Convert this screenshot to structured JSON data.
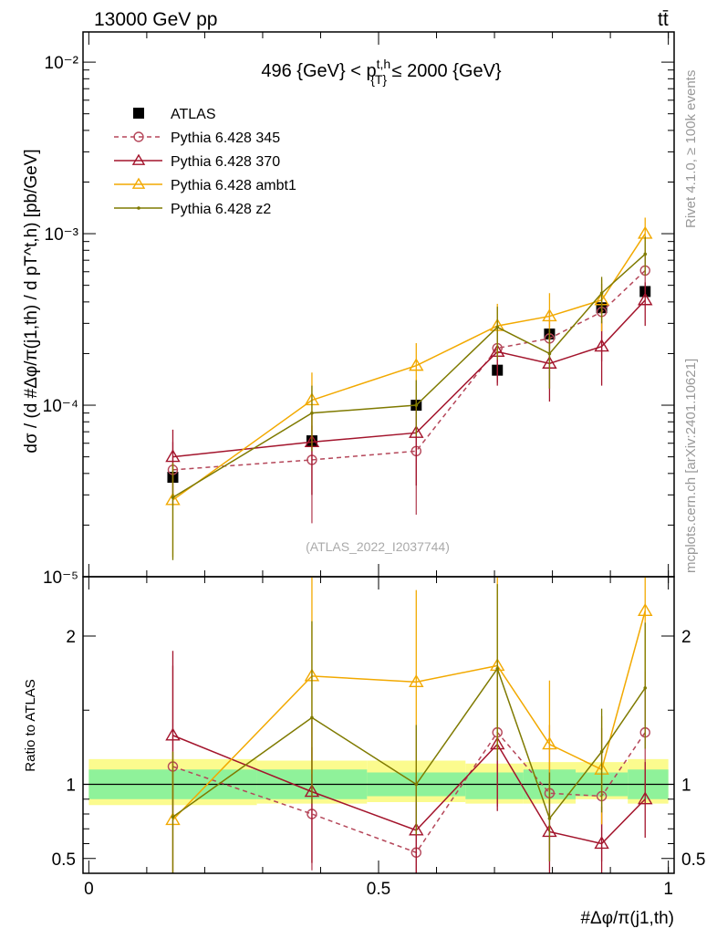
{
  "header": {
    "energy_label": "13000 GeV pp",
    "process_label": "tt̄"
  },
  "side_labels": {
    "rivet": "Rivet 4.1.0, ≥ 100k events",
    "mcplots": "mcplots.cern.ch [arXiv:2401.10621]"
  },
  "chart_data": [
    {
      "type": "line",
      "panel": "main",
      "title": "496 {GeV} < p_{T}^{t,h} ≤ 2000 {GeV}",
      "title_parts": {
        "pre": "496 {GeV} < p",
        "sup": "t,h",
        "sub": "{T}",
        "post": " ≤ 2000 {GeV}"
      },
      "ylabel": "dσ / (d #Δφ/π(j1,th) / d pT^t,h) [pb/GeV]",
      "yscale": "log",
      "ylim": [
        1e-05,
        0.015
      ],
      "xlim": [
        -0.01,
        1.01
      ],
      "y_tick_labels": [
        "10⁻²",
        "10⁻³",
        "10⁻⁴",
        "10⁻⁵"
      ],
      "watermark": "(ATLAS_2022_I2037744)",
      "x": [
        0.145,
        0.385,
        0.565,
        0.705,
        0.795,
        0.885,
        0.96
      ],
      "series": [
        {
          "name": "ATLAS",
          "color": "#000000",
          "marker": "square",
          "values": [
            3.8e-05,
            6.2e-05,
            0.0001,
            0.00016,
            0.00026,
            0.00037,
            0.00046
          ]
        },
        {
          "name": "Pythia 6.428 345",
          "color": "#b5475a",
          "marker": "circle",
          "dashed": true,
          "values": [
            4.2e-05,
            4.8e-05,
            5.4e-05,
            0.000215,
            0.000245,
            0.00035,
            0.00061
          ],
          "err_lo": [
            2.6e-05,
            2.05e-05,
            2.3e-05,
            0.000135,
            0.000125,
            0.00018,
            0.00044
          ],
          "err_hi": [
            6.1e-05,
            7.6e-05,
            8.6e-05,
            0.00029,
            0.00035,
            0.00051,
            0.0008
          ]
        },
        {
          "name": "Pythia 6.428 370",
          "color": "#a3142c",
          "marker": "triangle",
          "values": [
            5e-05,
            6.1e-05,
            6.9e-05,
            0.000205,
            0.000175,
            0.00022,
            0.00041
          ],
          "err_lo": [
            3e-05,
            3e-05,
            3.4e-05,
            0.00013,
            0.000105,
            0.00013,
            0.00029
          ],
          "err_hi": [
            7.2e-05,
            9.2e-05,
            0.00011,
            0.00029,
            0.00025,
            0.00031,
            0.00052
          ]
        },
        {
          "name": "Pythia 6.428 ambt1",
          "color": "#f2a900",
          "marker": "triangle",
          "values": [
            2.8e-05,
            0.000107,
            0.00017,
            0.00029,
            0.00033,
            0.00041,
            0.001
          ],
          "err_lo": [
            1.3e-05,
            6.6e-05,
            0.000106,
            0.000195,
            0.00022,
            0.00027,
            0.00076
          ],
          "err_hi": [
            4.6e-05,
            0.000155,
            0.00023,
            0.00039,
            0.00045,
            0.00054,
            0.00124
          ]
        },
        {
          "name": "Pythia 6.428 z2",
          "color": "#7f7a00",
          "marker": "dot",
          "values": [
            2.9e-05,
            9e-05,
            0.0001,
            0.000285,
            0.0002,
            0.00045,
            0.00076
          ],
          "err_lo": [
            1.25e-05,
            5.4e-05,
            6.6e-05,
            0.000185,
            0.000125,
            0.0003,
            0.00057
          ],
          "err_hi": [
            4.6e-05,
            0.00013,
            0.00014,
            0.000375,
            0.00028,
            0.00056,
            0.00096
          ]
        }
      ]
    },
    {
      "type": "line",
      "panel": "ratio",
      "ylabel": "Ratio to ATLAS",
      "xlabel": "#Δφ/π(j1,th)",
      "ylim": [
        0.4,
        2.4
      ],
      "xlim": [
        -0.01,
        1.01
      ],
      "x_tick_labels": [
        "0",
        "0.5",
        "1"
      ],
      "y_tick_labels": [
        "0.5",
        "1",
        "2"
      ],
      "x": [
        0.145,
        0.385,
        0.565,
        0.705,
        0.795,
        0.885,
        0.96
      ],
      "bands": {
        "edges": [
          0,
          0.29,
          0.48,
          0.65,
          0.75,
          0.84,
          0.93,
          1.0
        ],
        "green_lo": [
          0.9,
          0.9,
          0.92,
          0.9,
          0.9,
          0.92,
          0.9
        ],
        "green_hi": [
          1.1,
          1.1,
          1.08,
          1.08,
          1.1,
          1.08,
          1.1
        ],
        "yellow_lo": [
          0.86,
          0.87,
          0.88,
          0.87,
          0.87,
          0.9,
          0.87
        ],
        "yellow_hi": [
          1.17,
          1.16,
          1.16,
          1.14,
          1.15,
          1.15,
          1.17
        ]
      },
      "series": [
        {
          "name": "Pythia 6.428 345",
          "color": "#b5475a",
          "marker": "circle",
          "dashed": true,
          "values": [
            1.12,
            0.8,
            0.54,
            1.35,
            0.94,
            0.92,
            1.35
          ],
          "err_lo": [
            0.4,
            0.42,
            0.35,
            0.85,
            0.48,
            0.48,
            0.96
          ],
          "err_hi": [
            1.8,
            1.25,
            0.88,
            1.8,
            1.4,
            1.38,
            1.76
          ]
        },
        {
          "name": "Pythia 6.428 370",
          "color": "#a3142c",
          "marker": "triangle",
          "values": [
            1.33,
            0.95,
            0.69,
            1.27,
            0.68,
            0.6,
            0.9
          ],
          "err_lo": [
            0.8,
            0.47,
            0.35,
            0.82,
            0.4,
            0.35,
            0.64
          ],
          "err_hi": [
            1.9,
            1.45,
            1.1,
            1.75,
            1.0,
            0.85,
            1.15
          ]
        },
        {
          "name": "Pythia 6.428 ambt1",
          "color": "#f2a900",
          "marker": "triangle",
          "values": [
            0.76,
            1.73,
            1.69,
            1.8,
            1.27,
            1.1,
            2.17
          ],
          "err_lo": [
            0.35,
            1.07,
            1.05,
            1.22,
            0.85,
            0.73,
            1.64
          ],
          "err_hi": [
            1.22,
            2.5,
            2.31,
            2.4,
            1.7,
            1.46,
            2.7
          ]
        },
        {
          "name": "Pythia 6.428 z2",
          "color": "#7f7a00",
          "marker": "dot",
          "values": [
            0.78,
            1.45,
            1.0,
            1.78,
            0.77,
            1.22,
            1.65
          ],
          "err_lo": [
            0.33,
            0.87,
            0.66,
            1.16,
            0.48,
            0.81,
            1.24
          ],
          "err_hi": [
            1.22,
            2.1,
            1.4,
            2.35,
            1.08,
            1.51,
            2.09
          ]
        }
      ]
    }
  ]
}
